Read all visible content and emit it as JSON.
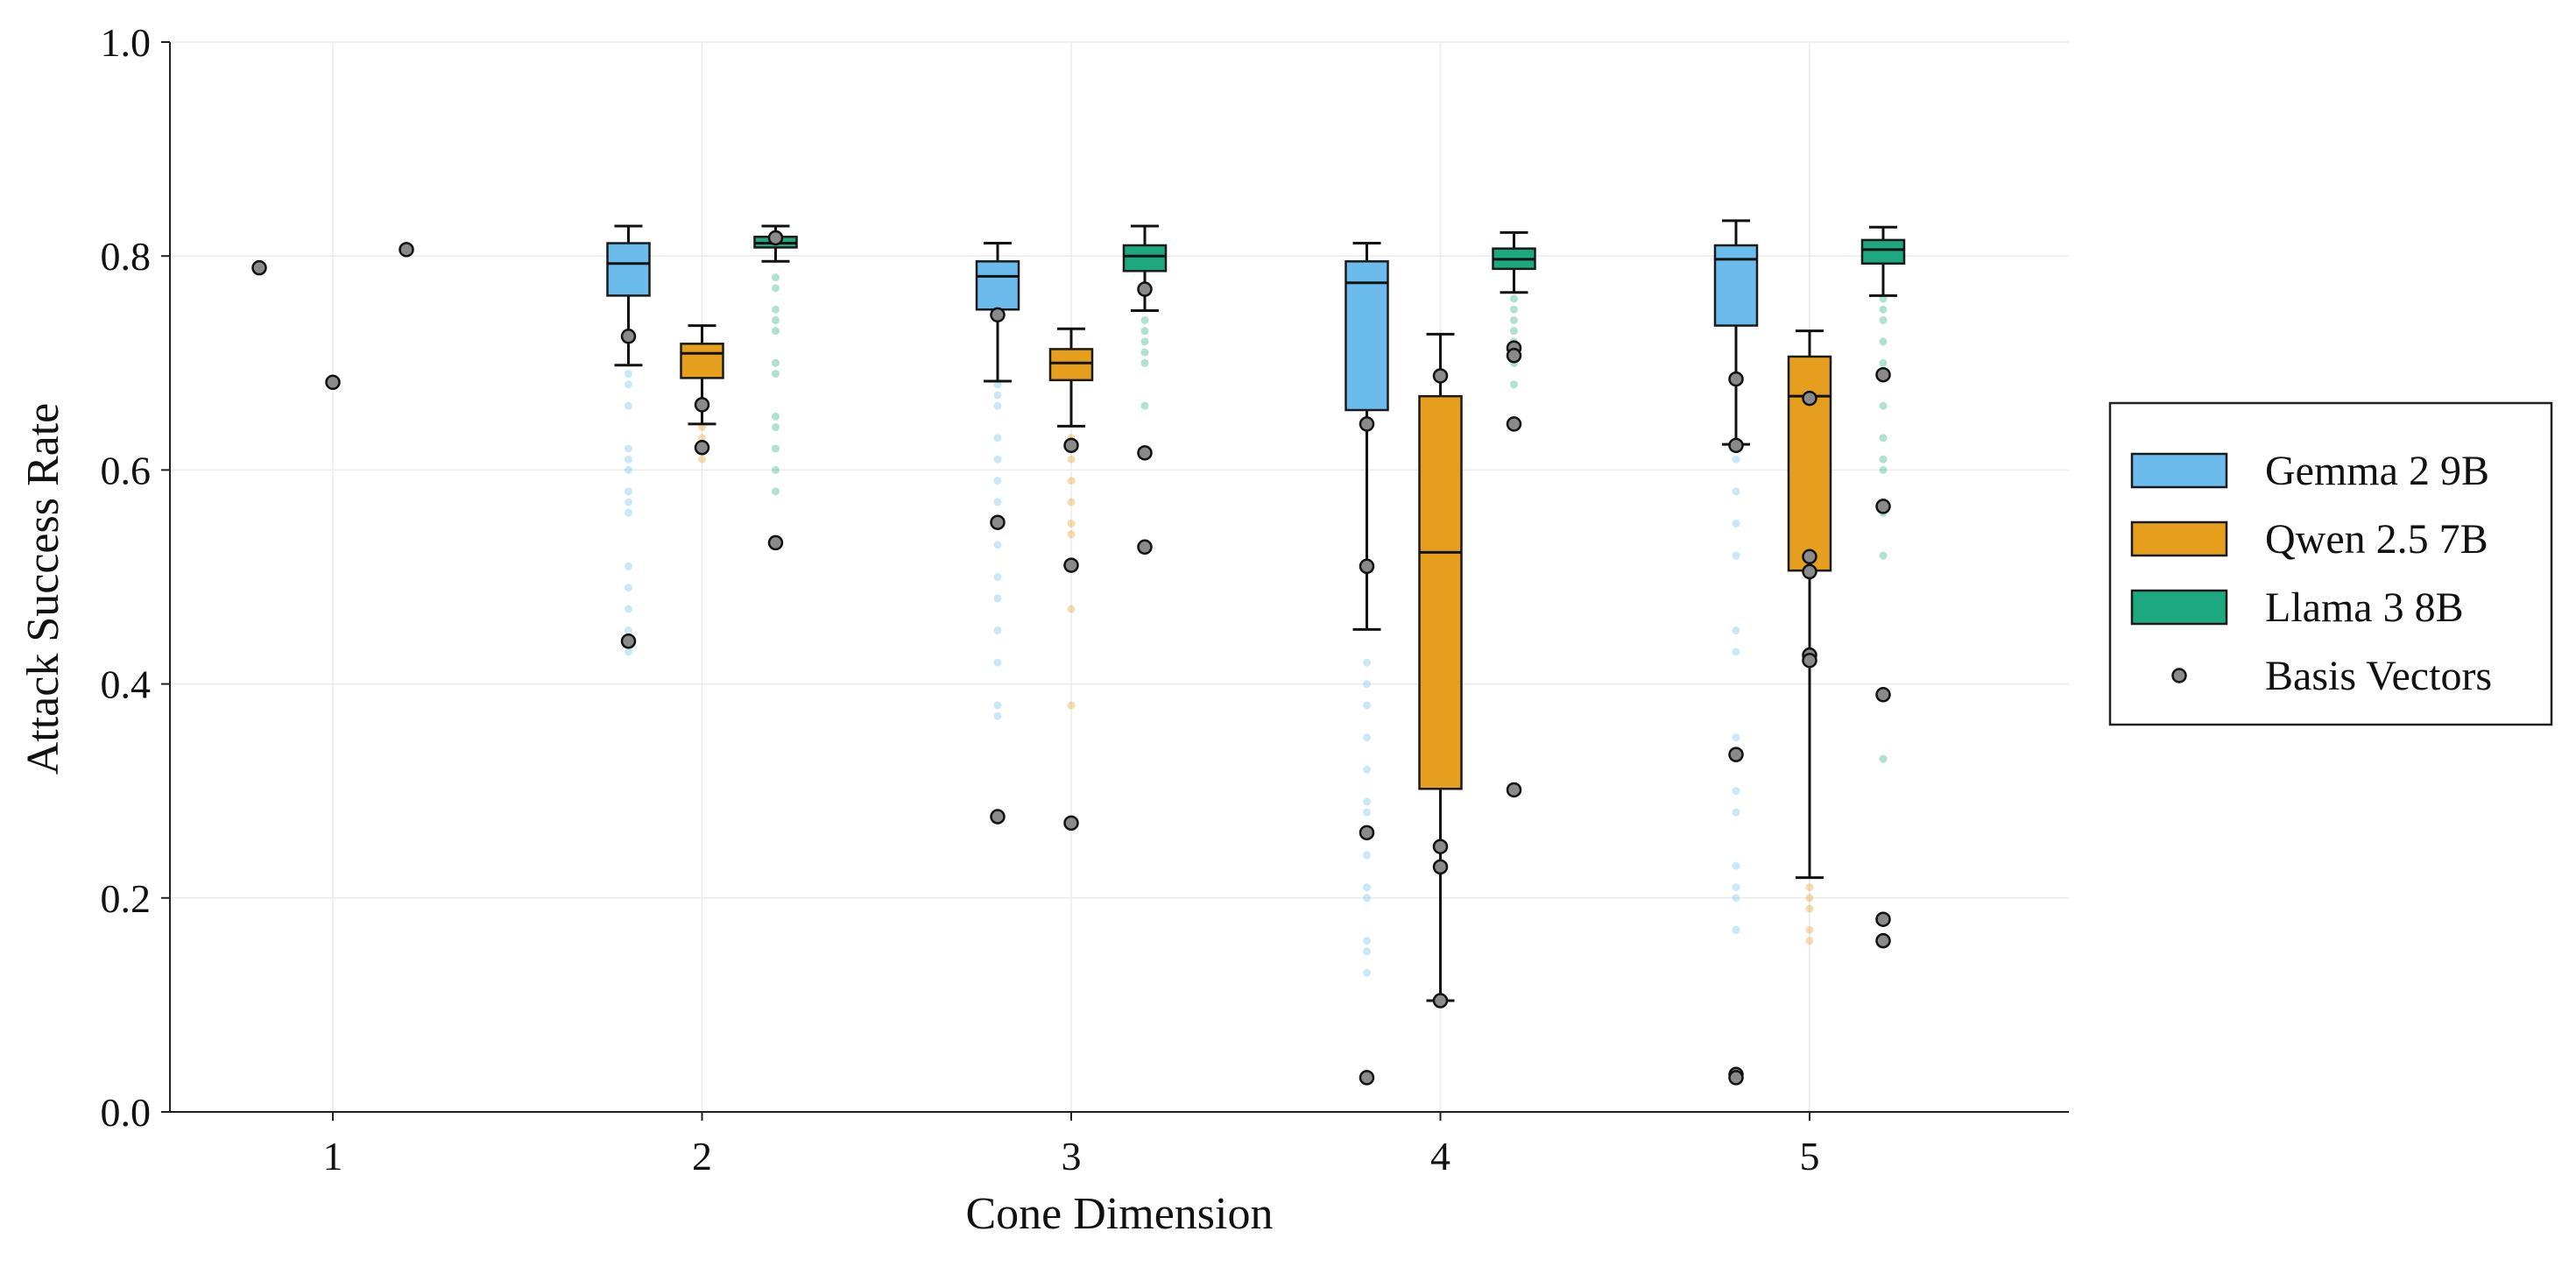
{
  "chart_data": {
    "type": "box",
    "xlabel": "Cone Dimension",
    "ylabel": "Attack Success Rate",
    "ylim": [
      0.0,
      1.0
    ],
    "yticks": [
      "0.0",
      "0.2",
      "0.4",
      "0.6",
      "0.8",
      "1.0"
    ],
    "grid": true,
    "legend_position": "right",
    "categories": [
      "1",
      "2",
      "3",
      "4",
      "5"
    ],
    "series": [
      {
        "name": "Gemma 2 9B",
        "color": "#6bbcec",
        "boxes": [
          {
            "category": "2",
            "q1": 0.763,
            "median": 0.793,
            "q3": 0.812,
            "whislo": 0.698,
            "whishi": 0.828,
            "fliers": [
              0.69,
              0.68,
              0.66,
              0.62,
              0.61,
              0.6,
              0.58,
              0.57,
              0.56,
              0.51,
              0.49,
              0.47,
              0.45,
              0.43
            ]
          },
          {
            "category": "3",
            "q1": 0.75,
            "median": 0.781,
            "q3": 0.795,
            "whislo": 0.683,
            "whishi": 0.812,
            "fliers": [
              0.68,
              0.67,
              0.66,
              0.63,
              0.61,
              0.59,
              0.57,
              0.55,
              0.53,
              0.5,
              0.48,
              0.45,
              0.42,
              0.38,
              0.37
            ]
          },
          {
            "category": "4",
            "q1": 0.656,
            "median": 0.775,
            "q3": 0.795,
            "whislo": 0.451,
            "whishi": 0.812,
            "fliers": [
              0.42,
              0.4,
              0.38,
              0.35,
              0.32,
              0.29,
              0.28,
              0.24,
              0.21,
              0.2,
              0.16,
              0.15,
              0.13
            ]
          },
          {
            "category": "5",
            "q1": 0.735,
            "median": 0.797,
            "q3": 0.81,
            "whislo": 0.624,
            "whishi": 0.833,
            "fliers": [
              0.61,
              0.58,
              0.55,
              0.52,
              0.45,
              0.43,
              0.35,
              0.33,
              0.3,
              0.28,
              0.23,
              0.21,
              0.2,
              0.17
            ]
          }
        ]
      },
      {
        "name": "Qwen 2.5 7B",
        "color": "#e69f1c",
        "boxes": [
          {
            "category": "2",
            "q1": 0.686,
            "median": 0.709,
            "q3": 0.718,
            "whislo": 0.643,
            "whishi": 0.735,
            "fliers": [
              0.64,
              0.63,
              0.62,
              0.61
            ]
          },
          {
            "category": "3",
            "q1": 0.684,
            "median": 0.7,
            "q3": 0.713,
            "whislo": 0.641,
            "whishi": 0.732,
            "fliers": [
              0.63,
              0.61,
              0.59,
              0.57,
              0.55,
              0.54,
              0.47,
              0.38
            ]
          },
          {
            "category": "4",
            "q1": 0.302,
            "median": 0.523,
            "q3": 0.669,
            "whislo": 0.104,
            "whishi": 0.727,
            "fliers": []
          },
          {
            "category": "5",
            "q1": 0.506,
            "median": 0.669,
            "q3": 0.706,
            "whislo": 0.219,
            "whishi": 0.73,
            "fliers": [
              0.21,
              0.2,
              0.19,
              0.17,
              0.16
            ]
          }
        ]
      },
      {
        "name": "Llama 3 8B",
        "color": "#1ea880",
        "boxes": [
          {
            "category": "2",
            "q1": 0.808,
            "median": 0.812,
            "q3": 0.818,
            "whislo": 0.795,
            "whishi": 0.828,
            "fliers": [
              0.78,
              0.77,
              0.75,
              0.74,
              0.73,
              0.7,
              0.69,
              0.65,
              0.64,
              0.62,
              0.6,
              0.58
            ]
          },
          {
            "category": "3",
            "q1": 0.786,
            "median": 0.8,
            "q3": 0.81,
            "whislo": 0.749,
            "whishi": 0.828,
            "fliers": [
              0.74,
              0.73,
              0.72,
              0.71,
              0.7,
              0.66
            ]
          },
          {
            "category": "4",
            "q1": 0.788,
            "median": 0.797,
            "q3": 0.807,
            "whislo": 0.766,
            "whishi": 0.822,
            "fliers": [
              0.76,
              0.75,
              0.74,
              0.73,
              0.72,
              0.7,
              0.68
            ]
          },
          {
            "category": "5",
            "q1": 0.793,
            "median": 0.806,
            "q3": 0.815,
            "whislo": 0.763,
            "whishi": 0.827,
            "fliers": [
              0.76,
              0.75,
              0.74,
              0.72,
              0.7,
              0.69,
              0.66,
              0.63,
              0.61,
              0.6,
              0.56,
              0.52,
              0.33
            ]
          }
        ]
      }
    ],
    "basis_vectors": {
      "name": "Basis Vectors",
      "points": [
        {
          "category": "1",
          "series": "Gemma 2 9B",
          "y": 0.789
        },
        {
          "category": "1",
          "series": "Qwen 2.5 7B",
          "y": 0.682
        },
        {
          "category": "1",
          "series": "Llama 3 8B",
          "y": 0.806
        },
        {
          "category": "2",
          "series": "Gemma 2 9B",
          "y": 0.725
        },
        {
          "category": "2",
          "series": "Gemma 2 9B",
          "y": 0.44
        },
        {
          "category": "2",
          "series": "Qwen 2.5 7B",
          "y": 0.661
        },
        {
          "category": "2",
          "series": "Qwen 2.5 7B",
          "y": 0.621
        },
        {
          "category": "2",
          "series": "Llama 3 8B",
          "y": 0.817
        },
        {
          "category": "2",
          "series": "Llama 3 8B",
          "y": 0.532
        },
        {
          "category": "3",
          "series": "Gemma 2 9B",
          "y": 0.745
        },
        {
          "category": "3",
          "series": "Gemma 2 9B",
          "y": 0.551
        },
        {
          "category": "3",
          "series": "Gemma 2 9B",
          "y": 0.276
        },
        {
          "category": "3",
          "series": "Qwen 2.5 7B",
          "y": 0.623
        },
        {
          "category": "3",
          "series": "Qwen 2.5 7B",
          "y": 0.511
        },
        {
          "category": "3",
          "series": "Qwen 2.5 7B",
          "y": 0.27
        },
        {
          "category": "3",
          "series": "Llama 3 8B",
          "y": 0.769
        },
        {
          "category": "3",
          "series": "Llama 3 8B",
          "y": 0.616
        },
        {
          "category": "3",
          "series": "Llama 3 8B",
          "y": 0.528
        },
        {
          "category": "4",
          "series": "Gemma 2 9B",
          "y": 0.643
        },
        {
          "category": "4",
          "series": "Gemma 2 9B",
          "y": 0.51
        },
        {
          "category": "4",
          "series": "Gemma 2 9B",
          "y": 0.261
        },
        {
          "category": "4",
          "series": "Gemma 2 9B",
          "y": 0.032
        },
        {
          "category": "4",
          "series": "Qwen 2.5 7B",
          "y": 0.688
        },
        {
          "category": "4",
          "series": "Qwen 2.5 7B",
          "y": 0.248
        },
        {
          "category": "4",
          "series": "Qwen 2.5 7B",
          "y": 0.229
        },
        {
          "category": "4",
          "series": "Qwen 2.5 7B",
          "y": 0.104
        },
        {
          "category": "4",
          "series": "Llama 3 8B",
          "y": 0.714
        },
        {
          "category": "4",
          "series": "Llama 3 8B",
          "y": 0.707
        },
        {
          "category": "4",
          "series": "Llama 3 8B",
          "y": 0.643
        },
        {
          "category": "4",
          "series": "Llama 3 8B",
          "y": 0.301
        },
        {
          "category": "5",
          "series": "Gemma 2 9B",
          "y": 0.685
        },
        {
          "category": "5",
          "series": "Gemma 2 9B",
          "y": 0.623
        },
        {
          "category": "5",
          "series": "Gemma 2 9B",
          "y": 0.334
        },
        {
          "category": "5",
          "series": "Gemma 2 9B",
          "y": 0.035
        },
        {
          "category": "5",
          "series": "Gemma 2 9B",
          "y": 0.032
        },
        {
          "category": "5",
          "series": "Qwen 2.5 7B",
          "y": 0.667
        },
        {
          "category": "5",
          "series": "Qwen 2.5 7B",
          "y": 0.519
        },
        {
          "category": "5",
          "series": "Qwen 2.5 7B",
          "y": 0.505
        },
        {
          "category": "5",
          "series": "Qwen 2.5 7B",
          "y": 0.427
        },
        {
          "category": "5",
          "series": "Qwen 2.5 7B",
          "y": 0.422
        },
        {
          "category": "5",
          "series": "Llama 3 8B",
          "y": 0.689
        },
        {
          "category": "5",
          "series": "Llama 3 8B",
          "y": 0.566
        },
        {
          "category": "5",
          "series": "Llama 3 8B",
          "y": 0.39
        },
        {
          "category": "5",
          "series": "Llama 3 8B",
          "y": 0.18
        },
        {
          "category": "5",
          "series": "Llama 3 8B",
          "y": 0.16
        }
      ]
    },
    "legend": [
      "Gemma 2 9B",
      "Qwen 2.5 7B",
      "Llama 3 8B",
      "Basis Vectors"
    ]
  }
}
